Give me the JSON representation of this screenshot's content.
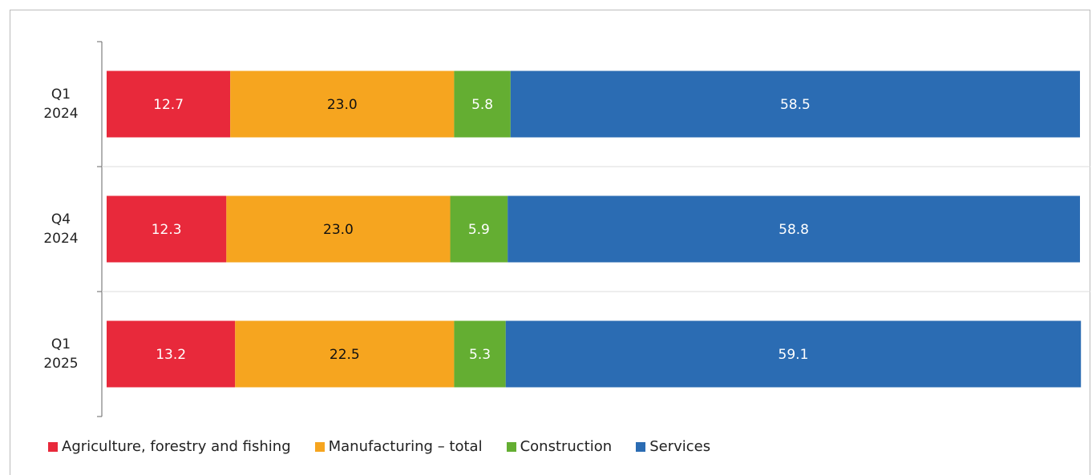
{
  "chart_data": {
    "type": "stacked_bar_horizontal",
    "categories": [
      "Q1\n2024",
      "Q4\n2024",
      "Q1\n2025"
    ],
    "series": [
      {
        "name": "Agriculture, forestry and fishing",
        "color": "#e8293b",
        "values": [
          12.7,
          12.3,
          13.2
        ]
      },
      {
        "name": "Manufacturing – total",
        "color": "#f6a51f",
        "values": [
          23.0,
          23.0,
          22.5
        ],
        "value_labels": [
          "23.0",
          "23.0",
          "22.5"
        ]
      },
      {
        "name": "Construction",
        "color": "#64ae32",
        "values": [
          5.8,
          5.9,
          5.3
        ]
      },
      {
        "name": "Services",
        "color": "#2b6cb3",
        "values": [
          58.5,
          58.8,
          59.1
        ]
      }
    ],
    "xlim": [
      0,
      100
    ]
  }
}
